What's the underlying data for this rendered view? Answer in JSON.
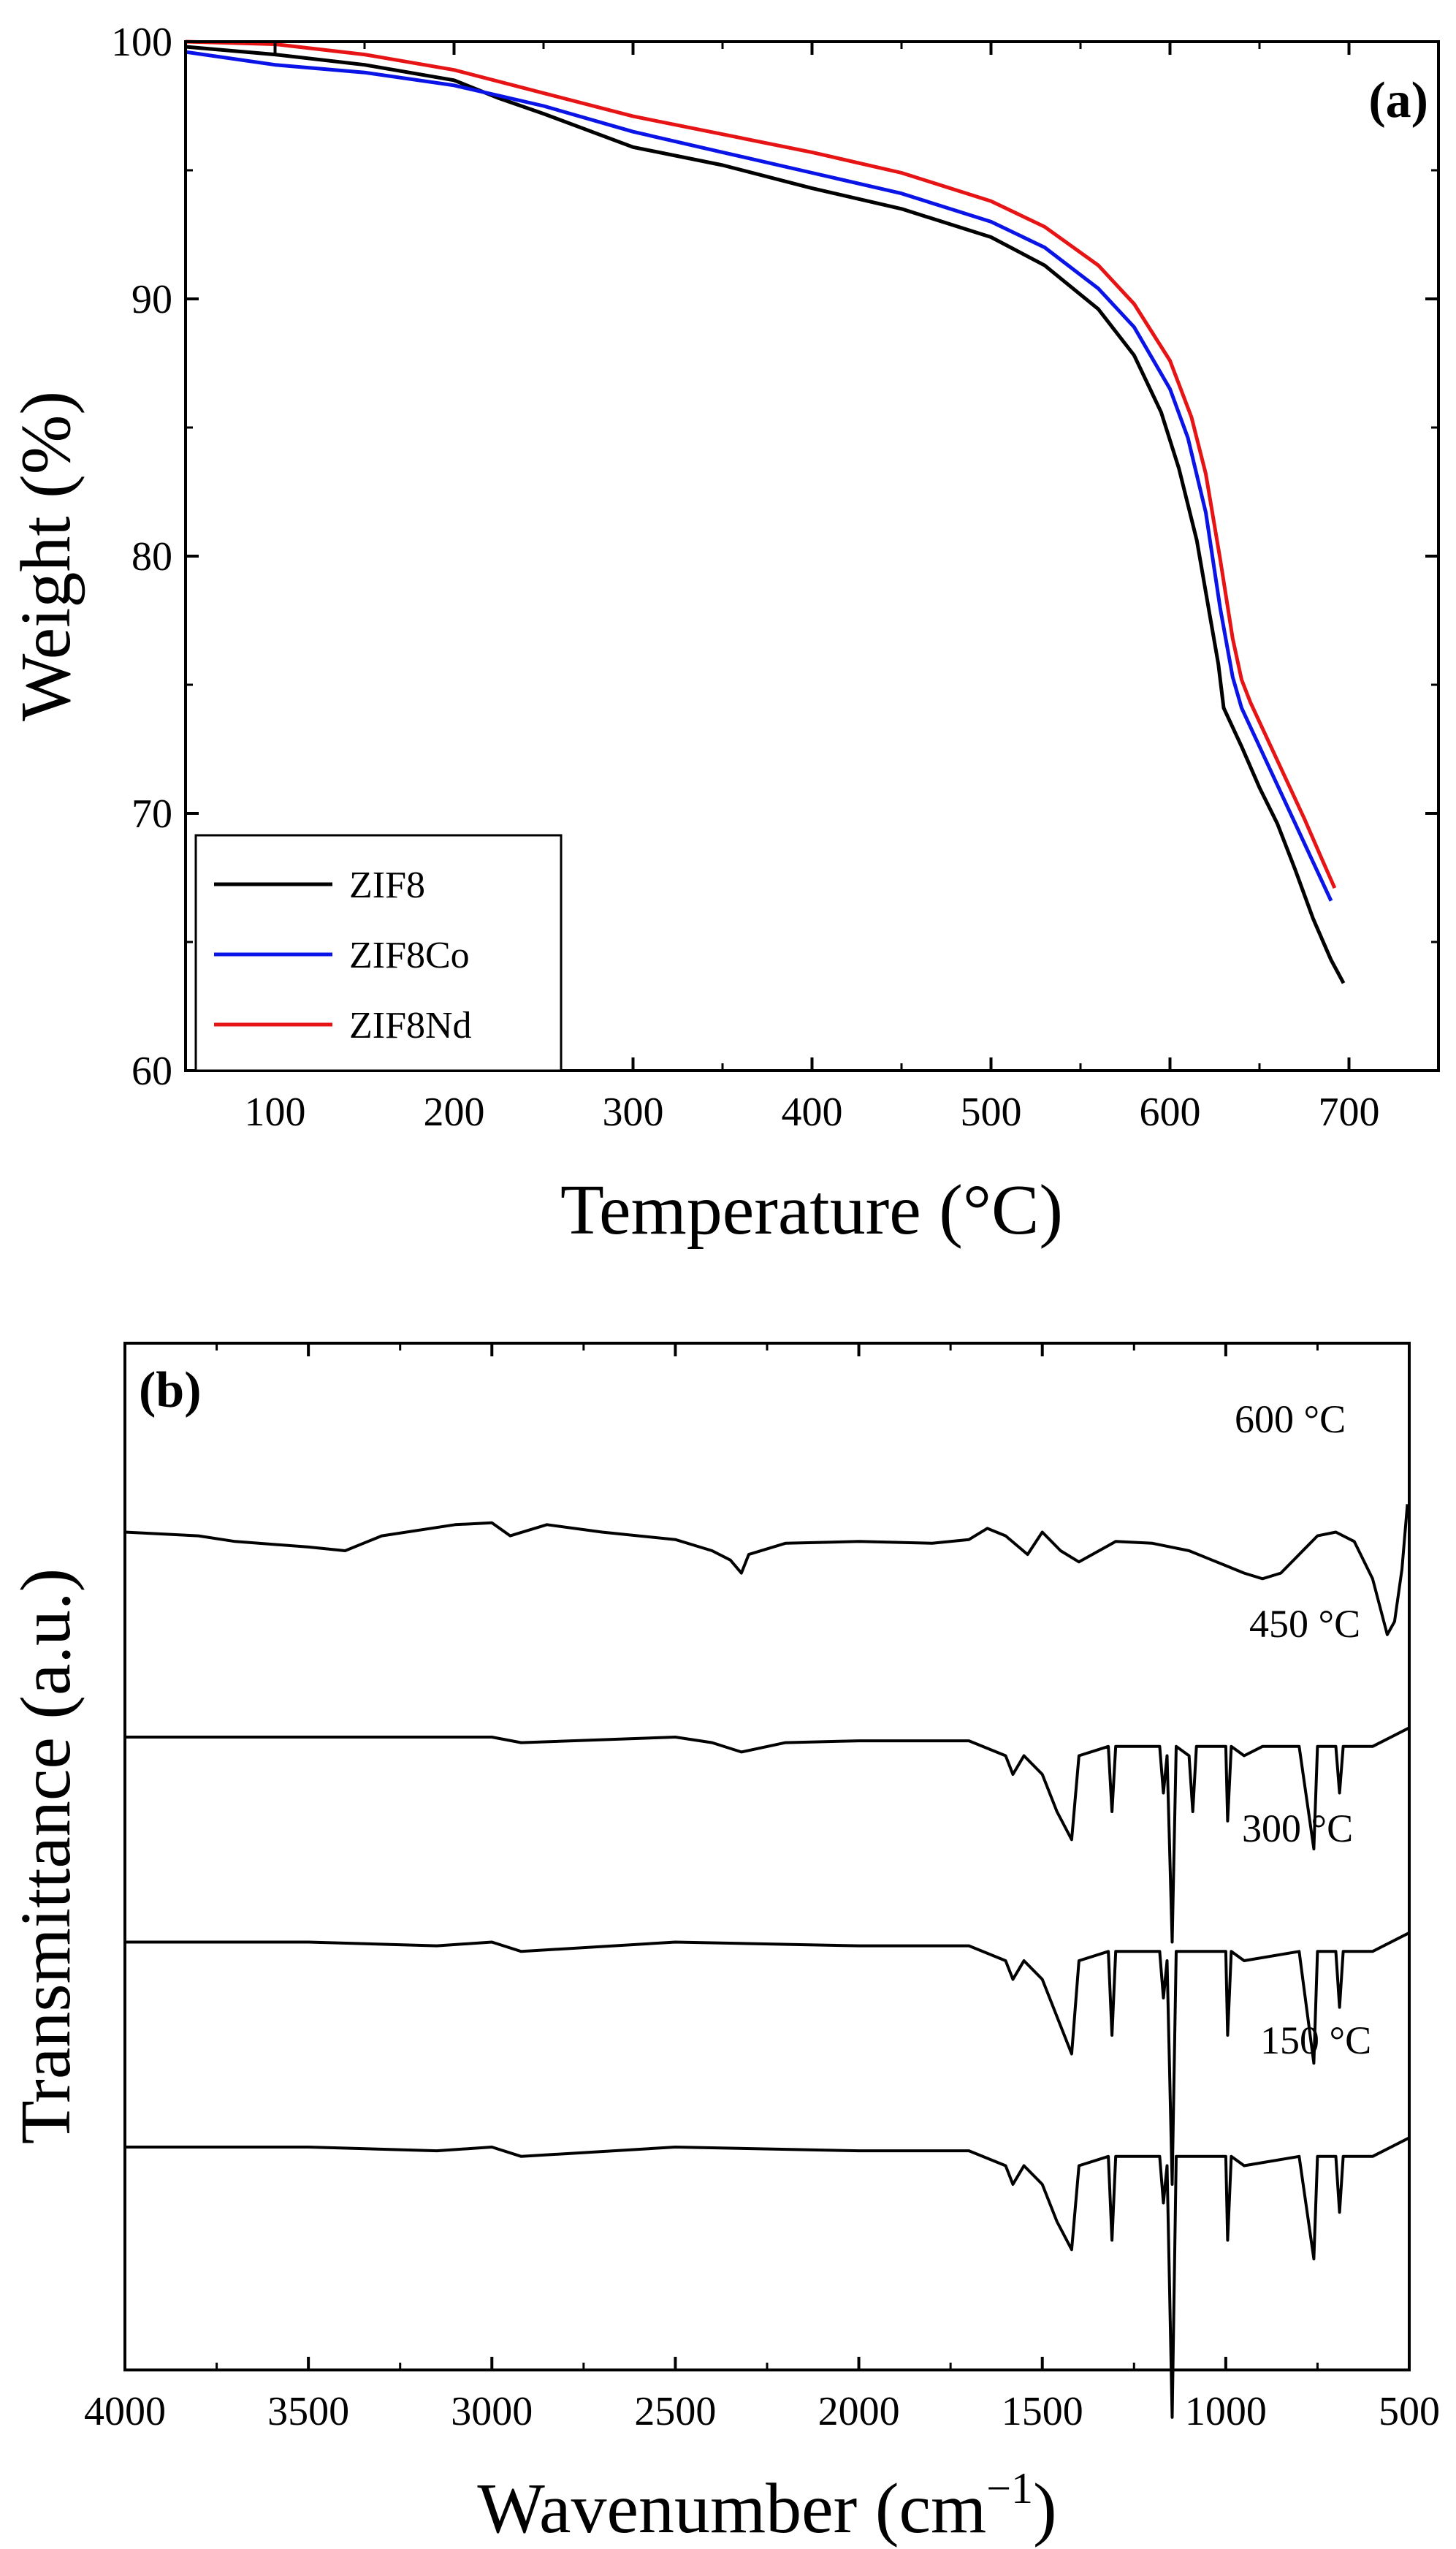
{
  "chart_data": [
    {
      "id": "a",
      "type": "line",
      "panel_label": "(a)",
      "xlabel": "Temperature (°C)",
      "ylabel": "Weight (%)",
      "xlim": [
        50,
        750
      ],
      "ylim": [
        60,
        100
      ],
      "xticks": [
        100,
        200,
        300,
        400,
        500,
        600,
        700
      ],
      "yticks": [
        60,
        70,
        80,
        90,
        100
      ],
      "legend_position": "bottom-left",
      "series": [
        {
          "name": "ZIF8",
          "color": "#000000",
          "points": [
            [
              50,
              99.8
            ],
            [
              100,
              99.5
            ],
            [
              150,
              99.1
            ],
            [
              200,
              98.5
            ],
            [
              225,
              97.8
            ],
            [
              250,
              97.2
            ],
            [
              300,
              95.9
            ],
            [
              350,
              95.2
            ],
            [
              400,
              94.3
            ],
            [
              450,
              93.5
            ],
            [
              500,
              92.4
            ],
            [
              530,
              91.3
            ],
            [
              560,
              89.6
            ],
            [
              580,
              87.8
            ],
            [
              595,
              85.6
            ],
            [
              605,
              83.4
            ],
            [
              615,
              80.6
            ],
            [
              622,
              77.8
            ],
            [
              627,
              75.8
            ],
            [
              630,
              74.1
            ],
            [
              640,
              72.6
            ],
            [
              650,
              71.0
            ],
            [
              660,
              69.6
            ],
            [
              670,
              67.8
            ],
            [
              680,
              65.9
            ],
            [
              690,
              64.3
            ],
            [
              697,
              63.4
            ]
          ]
        },
        {
          "name": "ZIF8Co",
          "color": "#0a14e6",
          "points": [
            [
              50,
              99.6
            ],
            [
              100,
              99.1
            ],
            [
              150,
              98.8
            ],
            [
              200,
              98.3
            ],
            [
              250,
              97.5
            ],
            [
              300,
              96.5
            ],
            [
              350,
              95.7
            ],
            [
              400,
              94.9
            ],
            [
              450,
              94.1
            ],
            [
              500,
              93.0
            ],
            [
              530,
              92.0
            ],
            [
              560,
              90.4
            ],
            [
              580,
              88.9
            ],
            [
              600,
              86.5
            ],
            [
              610,
              84.6
            ],
            [
              620,
              81.7
            ],
            [
              628,
              78.0
            ],
            [
              635,
              75.3
            ],
            [
              640,
              74.1
            ],
            [
              650,
              72.6
            ],
            [
              660,
              71.1
            ],
            [
              670,
              69.6
            ],
            [
              680,
              68.1
            ],
            [
              690,
              66.6
            ]
          ]
        },
        {
          "name": "ZIF8Nd",
          "color": "#e61414",
          "points": [
            [
              50,
              100.0
            ],
            [
              100,
              99.9
            ],
            [
              150,
              99.5
            ],
            [
              200,
              98.9
            ],
            [
              250,
              98.0
            ],
            [
              300,
              97.1
            ],
            [
              350,
              96.4
            ],
            [
              400,
              95.7
            ],
            [
              450,
              94.9
            ],
            [
              500,
              93.8
            ],
            [
              530,
              92.8
            ],
            [
              560,
              91.3
            ],
            [
              580,
              89.8
            ],
            [
              600,
              87.6
            ],
            [
              612,
              85.4
            ],
            [
              620,
              83.2
            ],
            [
              628,
              79.9
            ],
            [
              635,
              76.8
            ],
            [
              640,
              75.2
            ],
            [
              645,
              74.3
            ],
            [
              655,
              72.8
            ],
            [
              665,
              71.3
            ],
            [
              675,
              69.8
            ],
            [
              685,
              68.2
            ],
            [
              692,
              67.1
            ]
          ]
        }
      ]
    },
    {
      "id": "b",
      "type": "line",
      "panel_label": "(b)",
      "xlabel": "Wavenumber (cm",
      "xlabel_sup": "−1",
      "xlabel_close": ")",
      "ylabel": "Transmittance (a.u.)",
      "xlim": [
        4000,
        500
      ],
      "xreversed": true,
      "xticks": [
        4000,
        3500,
        3000,
        2500,
        2000,
        1500,
        1000,
        500
      ],
      "yticks_shown": false,
      "series": [
        {
          "name": "600 °C",
          "color": "#000000",
          "offset": 3.3,
          "points": [
            [
              4000,
              0.0
            ],
            [
              3800,
              -0.02
            ],
            [
              3700,
              -0.05
            ],
            [
              3500,
              -0.08
            ],
            [
              3400,
              -0.1
            ],
            [
              3300,
              -0.02
            ],
            [
              3100,
              0.04
            ],
            [
              3000,
              0.05
            ],
            [
              2950,
              -0.02
            ],
            [
              2850,
              0.04
            ],
            [
              2700,
              0.0
            ],
            [
              2500,
              -0.04
            ],
            [
              2400,
              -0.1
            ],
            [
              2350,
              -0.15
            ],
            [
              2320,
              -0.22
            ],
            [
              2300,
              -0.12
            ],
            [
              2200,
              -0.06
            ],
            [
              2000,
              -0.05
            ],
            [
              1800,
              -0.06
            ],
            [
              1700,
              -0.04
            ],
            [
              1650,
              0.02
            ],
            [
              1600,
              -0.02
            ],
            [
              1540,
              -0.12
            ],
            [
              1500,
              0.0
            ],
            [
              1450,
              -0.1
            ],
            [
              1400,
              -0.16
            ],
            [
              1300,
              -0.05
            ],
            [
              1200,
              -0.06
            ],
            [
              1100,
              -0.1
            ],
            [
              1000,
              -0.18
            ],
            [
              950,
              -0.22
            ],
            [
              900,
              -0.25
            ],
            [
              850,
              -0.22
            ],
            [
              800,
              -0.12
            ],
            [
              750,
              -0.02
            ],
            [
              700,
              0.0
            ],
            [
              650,
              -0.05
            ],
            [
              600,
              -0.25
            ],
            [
              560,
              -0.55
            ],
            [
              540,
              -0.48
            ],
            [
              520,
              -0.2
            ],
            [
              505,
              0.15
            ]
          ]
        },
        {
          "name": "450 °C",
          "color": "#000000",
          "offset": 2.2,
          "points": [
            [
              4000,
              0.0
            ],
            [
              3500,
              0.0
            ],
            [
              3000,
              0.0
            ],
            [
              2920,
              -0.03
            ],
            [
              2500,
              0.0
            ],
            [
              2400,
              -0.03
            ],
            [
              2320,
              -0.08
            ],
            [
              2200,
              -0.03
            ],
            [
              2000,
              -0.02
            ],
            [
              1700,
              -0.02
            ],
            [
              1600,
              -0.1
            ],
            [
              1580,
              -0.2
            ],
            [
              1550,
              -0.1
            ],
            [
              1500,
              -0.2
            ],
            [
              1460,
              -0.4
            ],
            [
              1420,
              -0.55
            ],
            [
              1400,
              -0.1
            ],
            [
              1320,
              -0.05
            ],
            [
              1310,
              -0.4
            ],
            [
              1300,
              -0.05
            ],
            [
              1180,
              -0.05
            ],
            [
              1170,
              -0.3
            ],
            [
              1160,
              -0.1
            ],
            [
              1146,
              -1.1
            ],
            [
              1135,
              -0.05
            ],
            [
              1100,
              -0.1
            ],
            [
              1090,
              -0.4
            ],
            [
              1080,
              -0.05
            ],
            [
              1000,
              -0.05
            ],
            [
              995,
              -0.45
            ],
            [
              985,
              -0.05
            ],
            [
              950,
              -0.1
            ],
            [
              900,
              -0.05
            ],
            [
              800,
              -0.05
            ],
            [
              760,
              -0.6
            ],
            [
              750,
              -0.05
            ],
            [
              700,
              -0.05
            ],
            [
              690,
              -0.3
            ],
            [
              680,
              -0.05
            ],
            [
              600,
              -0.05
            ],
            [
              500,
              0.05
            ]
          ]
        },
        {
          "name": "300 °C",
          "color": "#000000",
          "offset": 1.1,
          "points": [
            [
              4000,
              0.0
            ],
            [
              3500,
              0.0
            ],
            [
              3150,
              -0.02
            ],
            [
              3000,
              0.0
            ],
            [
              2920,
              -0.05
            ],
            [
              2500,
              0.0
            ],
            [
              2000,
              -0.02
            ],
            [
              1700,
              -0.02
            ],
            [
              1600,
              -0.1
            ],
            [
              1580,
              -0.2
            ],
            [
              1550,
              -0.1
            ],
            [
              1500,
              -0.2
            ],
            [
              1460,
              -0.4
            ],
            [
              1420,
              -0.6
            ],
            [
              1400,
              -0.1
            ],
            [
              1320,
              -0.05
            ],
            [
              1310,
              -0.5
            ],
            [
              1300,
              -0.05
            ],
            [
              1180,
              -0.05
            ],
            [
              1170,
              -0.3
            ],
            [
              1160,
              -0.1
            ],
            [
              1146,
              -1.3
            ],
            [
              1135,
              -0.05
            ],
            [
              1000,
              -0.05
            ],
            [
              995,
              -0.5
            ],
            [
              985,
              -0.05
            ],
            [
              950,
              -0.1
            ],
            [
              800,
              -0.05
            ],
            [
              760,
              -0.65
            ],
            [
              750,
              -0.05
            ],
            [
              700,
              -0.05
            ],
            [
              690,
              -0.35
            ],
            [
              680,
              -0.05
            ],
            [
              600,
              -0.05
            ],
            [
              500,
              0.05
            ]
          ]
        },
        {
          "name": "150 °C",
          "color": "#000000",
          "offset": 0.0,
          "points": [
            [
              4000,
              0.0
            ],
            [
              3500,
              0.0
            ],
            [
              3150,
              -0.02
            ],
            [
              3000,
              0.0
            ],
            [
              2920,
              -0.05
            ],
            [
              2500,
              0.0
            ],
            [
              2000,
              -0.02
            ],
            [
              1700,
              -0.02
            ],
            [
              1600,
              -0.1
            ],
            [
              1580,
              -0.2
            ],
            [
              1550,
              -0.1
            ],
            [
              1500,
              -0.2
            ],
            [
              1460,
              -0.4
            ],
            [
              1420,
              -0.55
            ],
            [
              1400,
              -0.1
            ],
            [
              1320,
              -0.05
            ],
            [
              1310,
              -0.5
            ],
            [
              1300,
              -0.05
            ],
            [
              1180,
              -0.05
            ],
            [
              1170,
              -0.3
            ],
            [
              1160,
              -0.1
            ],
            [
              1146,
              -1.45
            ],
            [
              1135,
              -0.05
            ],
            [
              1000,
              -0.05
            ],
            [
              995,
              -0.5
            ],
            [
              985,
              -0.05
            ],
            [
              950,
              -0.1
            ],
            [
              800,
              -0.05
            ],
            [
              760,
              -0.6
            ],
            [
              750,
              -0.05
            ],
            [
              700,
              -0.05
            ],
            [
              690,
              -0.35
            ],
            [
              680,
              -0.05
            ],
            [
              600,
              -0.05
            ],
            [
              500,
              0.05
            ]
          ]
        }
      ]
    }
  ]
}
